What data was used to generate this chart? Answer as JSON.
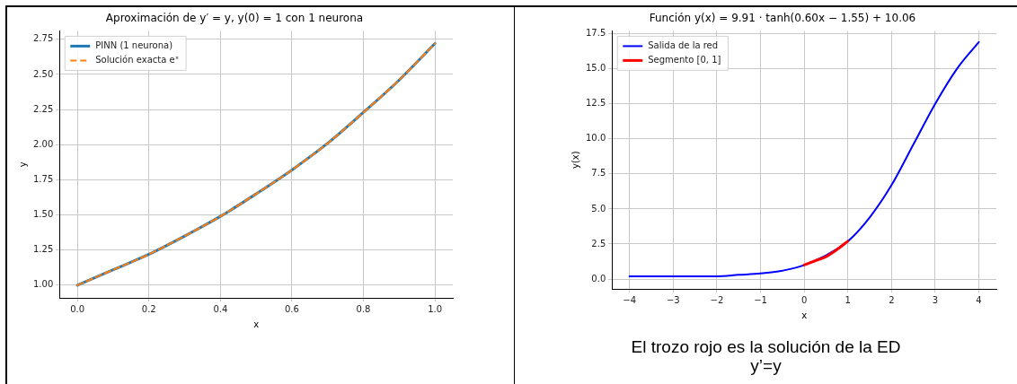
{
  "chart_data": [
    {
      "type": "line",
      "title": "Aproximación de y′ = y, y(0) = 1 con 1 neurona",
      "xlabel": "x",
      "ylabel": "y",
      "x": [
        0,
        0.1,
        0.2,
        0.3,
        0.4,
        0.5,
        0.6,
        0.7,
        0.8,
        0.9,
        1.0
      ],
      "series": [
        {
          "name": "PINN (1 neurona)",
          "color": "#1f77b4",
          "line_style": "solid",
          "values": [
            1.0,
            1.11,
            1.22,
            1.35,
            1.49,
            1.65,
            1.82,
            2.01,
            2.23,
            2.46,
            2.72
          ]
        },
        {
          "name": "Solución exacta eˣ",
          "color": "#ff7f0e",
          "line_style": "dashed",
          "values": [
            1.0,
            1.11,
            1.22,
            1.35,
            1.49,
            1.65,
            1.82,
            2.01,
            2.23,
            2.46,
            2.72
          ]
        }
      ],
      "xlim": [
        -0.05,
        1.05
      ],
      "xticks": [
        {
          "value": 0,
          "label": "0.0"
        },
        {
          "value": 0.2,
          "label": "0.2"
        },
        {
          "value": 0.4,
          "label": "0.4"
        },
        {
          "value": 0.6,
          "label": "0.6"
        },
        {
          "value": 0.8,
          "label": "0.8"
        },
        {
          "value": 1,
          "label": "1.0"
        }
      ],
      "ylim": [
        0.91,
        2.81
      ],
      "yticks": [
        {
          "value": 1,
          "label": "1.00"
        },
        {
          "value": 1.25,
          "label": "1.25"
        },
        {
          "value": 1.5,
          "label": "1.50"
        },
        {
          "value": 1.75,
          "label": "1.75"
        },
        {
          "value": 2,
          "label": "2.00"
        },
        {
          "value": 2.25,
          "label": "2.25"
        },
        {
          "value": 2.5,
          "label": "2.50"
        },
        {
          "value": 2.75,
          "label": "2.75"
        }
      ],
      "grid": true,
      "legend": "top left",
      "marker": "none"
    },
    {
      "type": "line",
      "title": "Función y(x) = 9.91 · tanh(0.60x − 1.55) + 10.06",
      "xlabel": "x",
      "ylabel": "y(x)",
      "series": [
        {
          "name": "Salida de la red",
          "color": "#0000ff",
          "line_style": "solid",
          "x": [
            -4,
            -3.5,
            -3,
            -2.5,
            -2,
            -1.5,
            -1,
            -0.5,
            0,
            1,
            1.5,
            2,
            2.5,
            3,
            3.5,
            4
          ],
          "values": [
            0.2,
            0.2,
            0.2,
            0.2,
            0.2,
            0.3,
            0.4,
            0.6,
            1.0,
            2.7,
            4.4,
            6.7,
            9.6,
            12.5,
            15.0,
            16.9
          ]
        },
        {
          "name": "Segmento [0, 1]",
          "color": "#ff0000",
          "line_style": "solid",
          "x": [
            0,
            0.25,
            0.5,
            0.75,
            1
          ],
          "values": [
            1.0,
            1.3,
            1.6,
            2.1,
            2.7
          ]
        }
      ],
      "xlim": [
        -4.4,
        4.4
      ],
      "xticks": [
        {
          "value": -4,
          "label": "−4"
        },
        {
          "value": -3,
          "label": "−3"
        },
        {
          "value": -2,
          "label": "−2"
        },
        {
          "value": -1,
          "label": "−1"
        },
        0,
        1,
        2,
        3,
        4
      ],
      "ylim": [
        -0.7,
        17.7
      ],
      "yticks": [
        {
          "value": 0,
          "label": "0.0"
        },
        {
          "value": 2.5,
          "label": "2.5"
        },
        {
          "value": 5,
          "label": "5.0"
        },
        {
          "value": 7.5,
          "label": "7.5"
        },
        {
          "value": 10,
          "label": "10.0"
        },
        {
          "value": 12.5,
          "label": "12.5"
        },
        {
          "value": 15,
          "label": "15.0"
        },
        {
          "value": 17.5,
          "label": "17.5"
        }
      ],
      "grid": true,
      "legend": "top left",
      "marker": "none",
      "annotations": [
        "El trozo rojo es la solución de la ED",
        "y’=y"
      ]
    }
  ]
}
